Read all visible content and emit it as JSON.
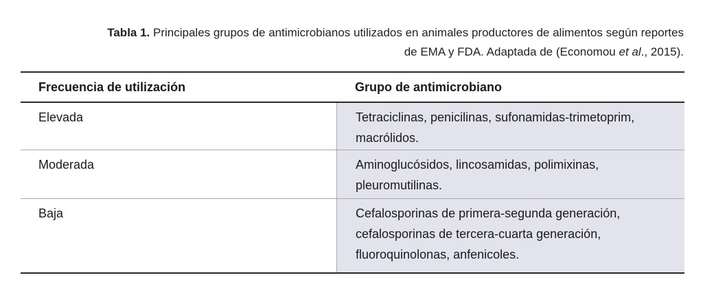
{
  "caption": {
    "label": "Tabla 1.",
    "text_line1": " Principales grupos de antimicrobianos utilizados en animales productores de alimentos según reportes",
    "text_line2_before": "de EMA y FDA. Adaptada de (Economou ",
    "text_line2_italic": "et al",
    "text_line2_after": "., 2015)."
  },
  "table": {
    "headers": {
      "col1": "Frecuencia de utilización",
      "col2": "Grupo de antimicrobiano"
    },
    "rows": [
      {
        "frequency": "Elevada",
        "group": "Tetraciclinas, penicilinas, sufonamidas-trimetoprim, macrólidos."
      },
      {
        "frequency": "Moderada",
        "group": "Aminoglucósidos, lincosamidas, polimixinas, pleuromutilinas."
      },
      {
        "frequency": "Baja",
        "group": "Cefalosporinas de primera-segunda generación, cefalosporinas de tercera-cuarta generación, fluoroquinolonas, anfenicoles."
      }
    ]
  }
}
